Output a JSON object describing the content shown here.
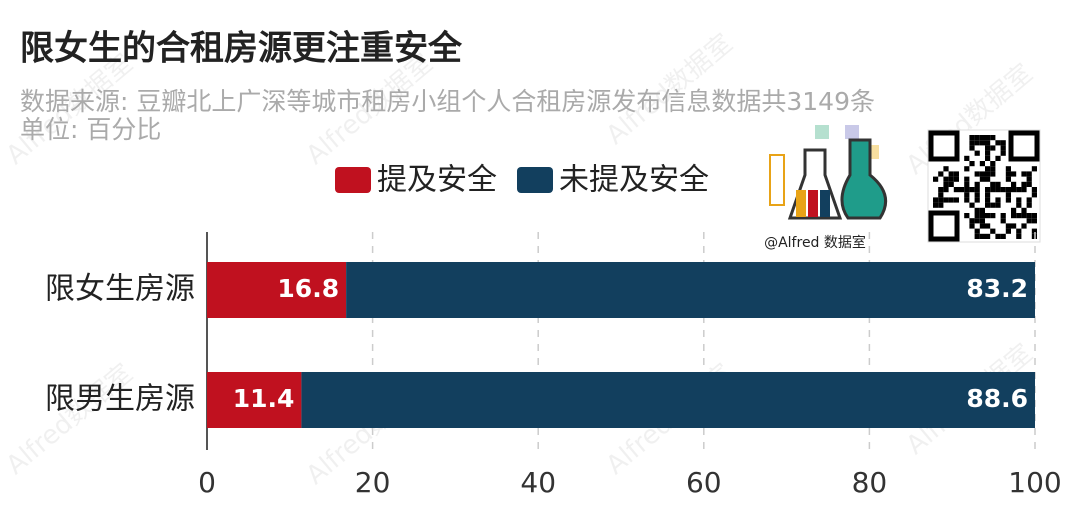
{
  "chart_data": {
    "type": "stacked-bar-horizontal",
    "title": "限女生的合租房源更注重安全",
    "subtitle": [
      "数据来源: 豆瓣北上广深等城市租房小组个人合租房源发布信息数据共3149条",
      "单位: 百分比"
    ],
    "categories": [
      "限女生房源",
      "限男生房源"
    ],
    "series": [
      {
        "name": "提及安全",
        "color": "#c0111f",
        "values": [
          16.8,
          11.4
        ]
      },
      {
        "name": "未提及安全",
        "color": "#123f5e",
        "values": [
          83.2,
          88.6
        ]
      }
    ],
    "xlim": [
      0,
      100
    ],
    "xticks": [
      0,
      20,
      40,
      60,
      80,
      100
    ],
    "grid": true,
    "logo_text": "@Alfred 数据室",
    "watermark": "Alfred数据室"
  }
}
